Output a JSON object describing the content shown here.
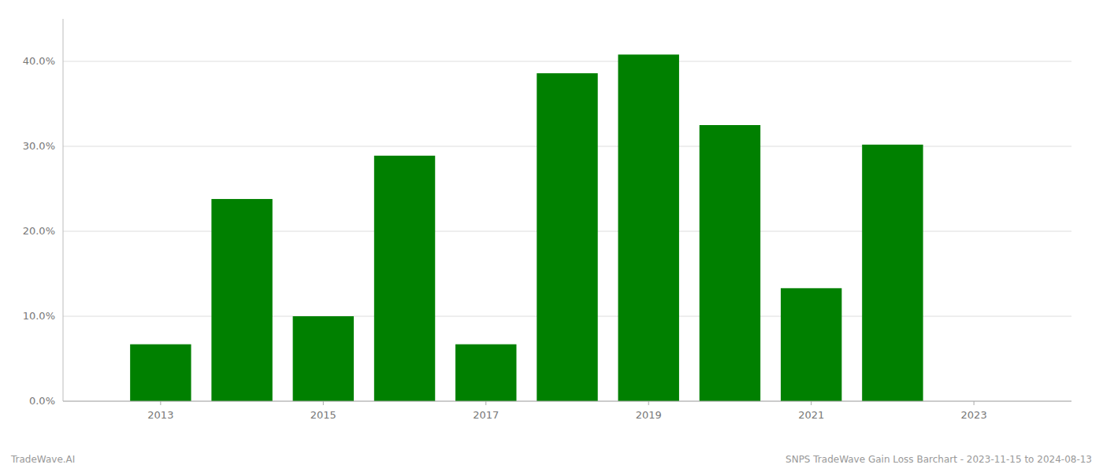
{
  "chart_data": {
    "type": "bar",
    "x": [
      2013,
      2014,
      2015,
      2016,
      2017,
      2018,
      2019,
      2020,
      2021,
      2022
    ],
    "values": [
      0.067,
      0.238,
      0.1,
      0.289,
      0.067,
      0.386,
      0.408,
      0.325,
      0.133,
      0.302
    ],
    "color": "#008000",
    "xlim": [
      2011.8,
      2024.2
    ],
    "xticks": [
      2013,
      2015,
      2017,
      2019,
      2021,
      2023
    ],
    "ylim": [
      0,
      0.45
    ],
    "yticks": [
      {
        "value": 0.0,
        "label": "0.0%"
      },
      {
        "value": 0.1,
        "label": "10.0%"
      },
      {
        "value": 0.2,
        "label": "20.0%"
      },
      {
        "value": 0.3,
        "label": "30.0%"
      },
      {
        "value": 0.4,
        "label": "40.0%"
      }
    ],
    "grid": true,
    "annotations": [
      "TradeWave.AI",
      "SNPS TradeWave Gain Loss Barchart - 2023-11-15 to 2024-08-13"
    ]
  }
}
